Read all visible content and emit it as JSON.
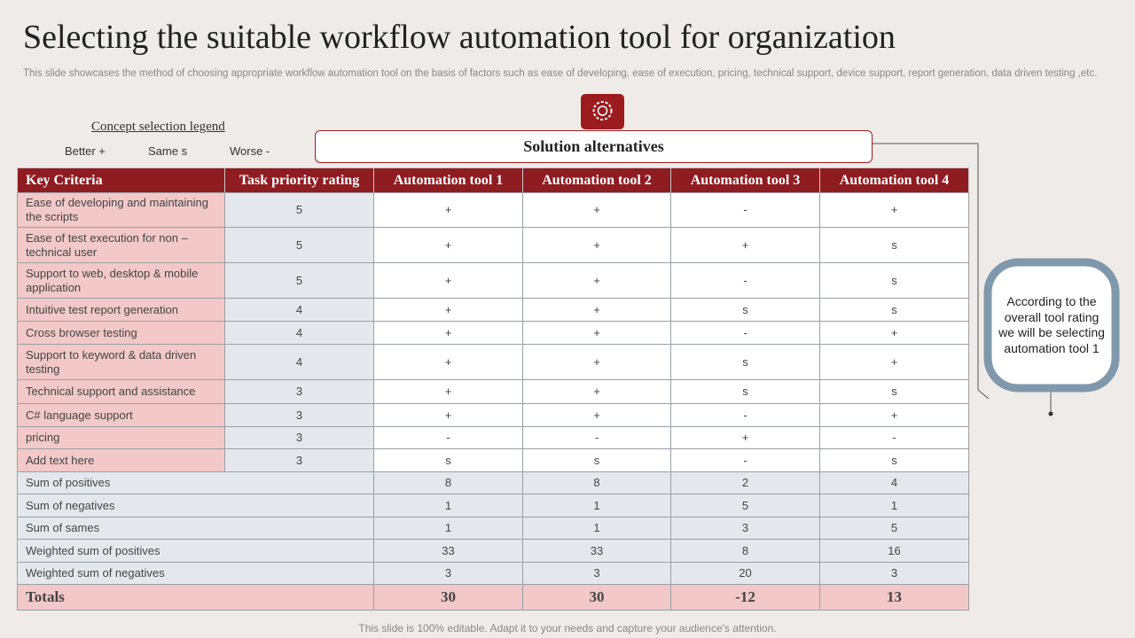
{
  "title": "Selecting the suitable workflow automation tool for organization",
  "subtitle": "This slide showcases the method of choosing appropriate workflow automation tool on the basis of factors such as ease of developing, ease of execution, pricing, technical support, device support, report generation, data driven testing ,etc.",
  "legend": {
    "title": "Concept  selection legend",
    "items": [
      "Better +",
      "Same s",
      "Worse -"
    ]
  },
  "banner": "Solution alternatives",
  "table": {
    "header": [
      "Key Criteria",
      "Task priority rating",
      "Automation tool 1",
      "Automation tool 2",
      "Automation tool 3",
      "Automation tool 4"
    ],
    "rows": [
      [
        "Ease of developing  and maintaining the scripts",
        5,
        "+",
        "+",
        "-",
        "+"
      ],
      [
        "Ease of test execution for non – technical user",
        5,
        "+",
        "+",
        "+",
        "s"
      ],
      [
        "Support to web, desktop & mobile application",
        5,
        "+",
        "+",
        "-",
        "s"
      ],
      [
        "Intuitive test report  generation",
        4,
        "+",
        "+",
        "s",
        "s"
      ],
      [
        "Cross browser testing",
        4,
        "+",
        "+",
        "-",
        "+"
      ],
      [
        "Support to keyword & data driven testing",
        4,
        "+",
        "+",
        "s",
        "+"
      ],
      [
        "Technical support and assistance",
        3,
        "+",
        "+",
        "s",
        "s"
      ],
      [
        "C# language  support",
        3,
        "+",
        "+",
        "-",
        "+"
      ],
      [
        "pricing",
        3,
        "-",
        "-",
        "+",
        "-"
      ],
      [
        "Add text here",
        3,
        "s",
        "s",
        "-",
        "s"
      ]
    ],
    "summary": [
      [
        "Sum of positives",
        8,
        8,
        2,
        4
      ],
      [
        "Sum of negatives",
        1,
        1,
        5,
        1
      ],
      [
        "Sum of sames",
        1,
        1,
        3,
        5
      ],
      [
        "Weighted sum of positives",
        33,
        33,
        8,
        16
      ],
      [
        "Weighted sum of negatives",
        3,
        3,
        20,
        3
      ]
    ],
    "totals": [
      "Totals",
      30,
      30,
      -12,
      13
    ]
  },
  "callout": "According to the overall tool rating we will be selecting automation tool 1",
  "footer": "This slide is 100% editable. Adapt it to your needs and capture your audience's attention."
}
